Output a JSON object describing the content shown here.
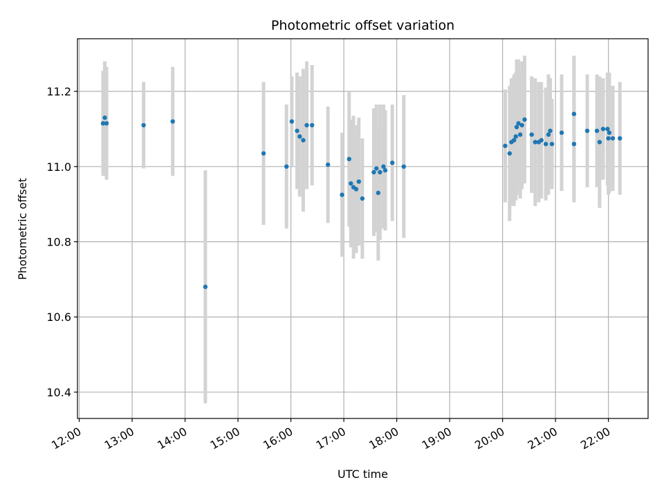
{
  "chart_data": {
    "type": "scatter",
    "title": "Photometric offset variation",
    "xlabel": "UTC time",
    "ylabel": "Photometric offset",
    "xlim": [
      "11:58",
      "22:45"
    ],
    "ylim": [
      10.33,
      11.34
    ],
    "grid": true,
    "x_ticks": [
      "12:00",
      "13:00",
      "14:00",
      "15:00",
      "16:00",
      "17:00",
      "18:00",
      "19:00",
      "20:00",
      "21:00",
      "22:00"
    ],
    "y_ticks": [
      10.4,
      10.6,
      10.8,
      11.0,
      11.2
    ],
    "y_tick_labels": [
      "10.4",
      "10.6",
      "10.8",
      "11.0",
      "11.2"
    ],
    "colors": {
      "marker": "#1f77b4",
      "errorbar": "#d3d3d3",
      "grid": "#b0b0b0"
    },
    "points": [
      {
        "x": "12:27",
        "y": 11.115,
        "err": 0.14
      },
      {
        "x": "12:29",
        "y": 11.13,
        "err": 0.15
      },
      {
        "x": "12:31",
        "y": 11.115,
        "err": 0.15
      },
      {
        "x": "13:13",
        "y": 11.11,
        "err": 0.115
      },
      {
        "x": "13:46",
        "y": 11.12,
        "err": 0.145
      },
      {
        "x": "14:23",
        "y": 10.68,
        "err": 0.31
      },
      {
        "x": "15:29",
        "y": 11.035,
        "err": 0.19
      },
      {
        "x": "15:55",
        "y": 11.0,
        "err": 0.165
      },
      {
        "x": "16:01",
        "y": 11.12,
        "err": 0.12
      },
      {
        "x": "16:07",
        "y": 11.095,
        "err": 0.155
      },
      {
        "x": "16:10",
        "y": 11.08,
        "err": 0.16
      },
      {
        "x": "16:14",
        "y": 11.07,
        "err": 0.19
      },
      {
        "x": "16:18",
        "y": 11.11,
        "err": 0.17
      },
      {
        "x": "16:24",
        "y": 11.11,
        "err": 0.16
      },
      {
        "x": "16:42",
        "y": 11.005,
        "err": 0.155
      },
      {
        "x": "16:58",
        "y": 10.925,
        "err": 0.165
      },
      {
        "x": "17:06",
        "y": 11.02,
        "err": 0.18
      },
      {
        "x": "17:08",
        "y": 10.955,
        "err": 0.17
      },
      {
        "x": "17:11",
        "y": 10.945,
        "err": 0.19
      },
      {
        "x": "17:14",
        "y": 10.94,
        "err": 0.17
      },
      {
        "x": "17:17",
        "y": 10.96,
        "err": 0.17
      },
      {
        "x": "17:21",
        "y": 10.915,
        "err": 0.16
      },
      {
        "x": "17:34",
        "y": 10.985,
        "err": 0.17
      },
      {
        "x": "17:37",
        "y": 10.995,
        "err": 0.17
      },
      {
        "x": "17:39",
        "y": 10.93,
        "err": 0.18
      },
      {
        "x": "17:41",
        "y": 10.985,
        "err": 0.18
      },
      {
        "x": "17:45",
        "y": 11.0,
        "err": 0.165
      },
      {
        "x": "17:47",
        "y": 10.99,
        "err": 0.16
      },
      {
        "x": "17:55",
        "y": 11.01,
        "err": 0.155
      },
      {
        "x": "18:08",
        "y": 11.0,
        "err": 0.19
      },
      {
        "x": "20:03",
        "y": 11.055,
        "err": 0.15
      },
      {
        "x": "20:08",
        "y": 11.035,
        "err": 0.18
      },
      {
        "x": "20:10",
        "y": 11.065,
        "err": 0.17
      },
      {
        "x": "20:13",
        "y": 11.07,
        "err": 0.175
      },
      {
        "x": "20:15",
        "y": 11.08,
        "err": 0.17
      },
      {
        "x": "20:16",
        "y": 11.105,
        "err": 0.18
      },
      {
        "x": "20:18",
        "y": 11.115,
        "err": 0.17
      },
      {
        "x": "20:20",
        "y": 11.085,
        "err": 0.17
      },
      {
        "x": "20:22",
        "y": 11.11,
        "err": 0.17
      },
      {
        "x": "20:25",
        "y": 11.125,
        "err": 0.17
      },
      {
        "x": "20:33",
        "y": 11.085,
        "err": 0.155
      },
      {
        "x": "20:37",
        "y": 11.065,
        "err": 0.17
      },
      {
        "x": "20:41",
        "y": 11.065,
        "err": 0.16
      },
      {
        "x": "20:44",
        "y": 11.07,
        "err": 0.155
      },
      {
        "x": "20:49",
        "y": 11.06,
        "err": 0.15
      },
      {
        "x": "20:52",
        "y": 11.085,
        "err": 0.16
      },
      {
        "x": "20:54",
        "y": 11.095,
        "err": 0.14
      },
      {
        "x": "20:56",
        "y": 11.06,
        "err": 0.12
      },
      {
        "x": "21:07",
        "y": 11.09,
        "err": 0.155
      },
      {
        "x": "21:21",
        "y": 11.06,
        "err": 0.155
      },
      {
        "x": "21:21",
        "y": 11.14,
        "err": 0.155
      },
      {
        "x": "21:36",
        "y": 11.095,
        "err": 0.15
      },
      {
        "x": "21:47",
        "y": 11.095,
        "err": 0.15
      },
      {
        "x": "21:50",
        "y": 11.065,
        "err": 0.175
      },
      {
        "x": "21:54",
        "y": 11.1,
        "err": 0.135
      },
      {
        "x": "21:59",
        "y": 11.1,
        "err": 0.15
      },
      {
        "x": "22:00",
        "y": 11.075,
        "err": 0.15
      },
      {
        "x": "22:01",
        "y": 11.09,
        "err": 0.16
      },
      {
        "x": "22:05",
        "y": 11.075,
        "err": 0.14
      },
      {
        "x": "22:13",
        "y": 11.075,
        "err": 0.15
      }
    ]
  }
}
